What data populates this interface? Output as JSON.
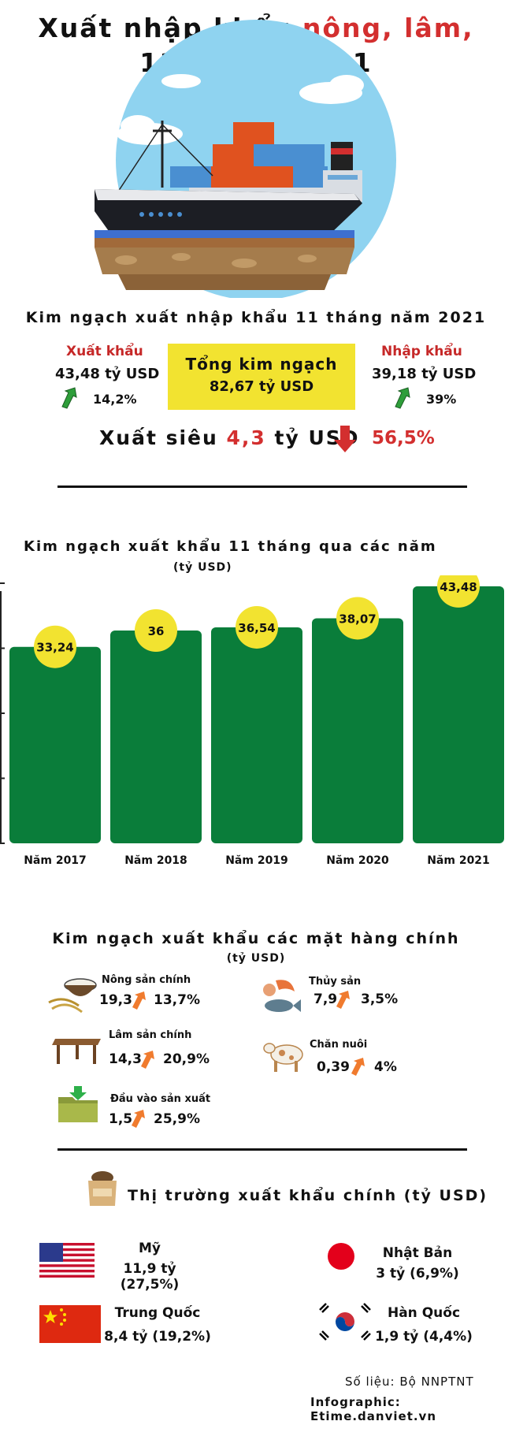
{
  "title": {
    "part1": "Xuất nhập khẩu ",
    "part2_red": "nông, lâm, thủy sản",
    "line2": "11 tháng 2021"
  },
  "summary": {
    "heading": "Kim ngạch xuất nhập khẩu 11 tháng năm 2021",
    "export_label": "Xuất khẩu",
    "export_value": "43,48 tỷ USD",
    "export_growth": "14,2%",
    "total_label": "Tổng kim ngạch",
    "total_value": "82,67 tỷ USD",
    "import_label": "Nhập khẩu",
    "import_value": "39,18 tỷ USD",
    "import_growth": "39%",
    "surplus_prefix": "Xuất siêu ",
    "surplus_value": "4,3",
    "surplus_unit": " tỷ USD",
    "surplus_change": "56,5%"
  },
  "chart_data": {
    "type": "bar",
    "title": "Kim ngạch xuất khẩu 11 tháng qua các năm",
    "unit": "(tỷ USD)",
    "categories": [
      "Năm 2017",
      "Năm 2018",
      "Năm 2019",
      "Năm 2020",
      "Năm 2021"
    ],
    "values": [
      33.24,
      36,
      36.54,
      38.07,
      43.48
    ],
    "value_labels": [
      "33,24",
      "36",
      "36,54",
      "38,07",
      "43,48"
    ],
    "ylim": [
      0,
      44
    ]
  },
  "products": {
    "heading": "Kim ngạch xuất khẩu các mặt hàng chính",
    "unit": "(tỷ USD)",
    "items": [
      {
        "label": "Nông sản chính",
        "value": "19,3",
        "growth": "13,7%"
      },
      {
        "label": "Thủy sản",
        "value": "7,9",
        "growth": "3,5%"
      },
      {
        "label": "Lâm sản chính",
        "value": "14,3",
        "growth": "20,9%"
      },
      {
        "label": "Chăn nuôi",
        "value": "0,39",
        "growth": "4%"
      },
      {
        "label": "Đầu vào sản xuất",
        "value": "1,5",
        "growth": "25,9%"
      }
    ]
  },
  "markets": {
    "heading": "Thị trường xuất khẩu chính (tỷ USD)",
    "items": [
      {
        "name": "Mỹ",
        "value": "11,9 tỷ (27,5%)"
      },
      {
        "name": "Nhật Bản",
        "value": "3 tỷ (6,9%)"
      },
      {
        "name": "Trung Quốc",
        "value": "8,4 tỷ (19,2%)"
      },
      {
        "name": "Hàn Quốc",
        "value": "1,9 tỷ (4,4%)"
      }
    ]
  },
  "footer": {
    "source": "Số liệu: Bộ NNPTNT",
    "credit": "Infographic: Etime.danviet.vn"
  },
  "colors": {
    "bar_green": "#0a7d3a",
    "bubble_yellow": "#f2e330",
    "accent_red": "#d32f2f",
    "arrow_orange": "#f07b2e",
    "arrow_green": "#2e9e3a"
  }
}
